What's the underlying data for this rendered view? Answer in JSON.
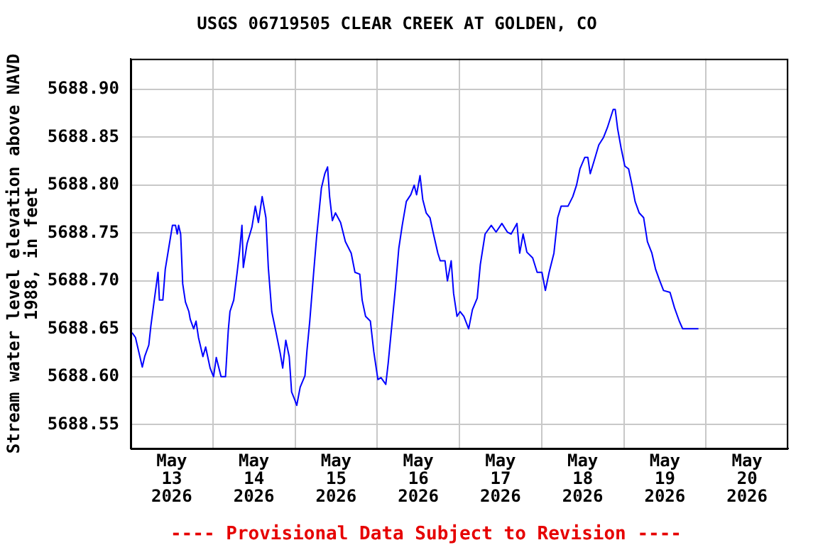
{
  "chart_data": {
    "type": "line",
    "title": "USGS 06719505 CLEAR CREEK AT GOLDEN, CO",
    "ylabel": "Stream water level elevation above NAVD\n1988, in feet",
    "annotations": [
      "---- Provisional Data Subject to Revision ----"
    ],
    "series": [
      {
        "color": "#0000ff",
        "x": [
          "2026-05-13T00:24",
          "2026-05-13T01:24",
          "2026-05-13T02:30",
          "2026-05-13T03:24",
          "2026-05-13T04:06",
          "2026-05-13T05:18",
          "2026-05-13T05:54",
          "2026-05-13T06:54",
          "2026-05-13T08:00",
          "2026-05-13T08:24",
          "2026-05-13T09:24",
          "2026-05-13T10:06",
          "2026-05-13T11:06",
          "2026-05-13T12:12",
          "2026-05-13T13:06",
          "2026-05-13T13:36",
          "2026-05-13T14:00",
          "2026-05-13T14:36",
          "2026-05-13T15:12",
          "2026-05-13T16:00",
          "2026-05-13T17:00",
          "2026-05-13T17:24",
          "2026-05-13T18:24",
          "2026-05-13T19:06",
          "2026-05-13T19:48",
          "2026-05-13T21:06",
          "2026-05-13T21:54",
          "2026-05-13T23:12",
          "2026-05-14T00:12",
          "2026-05-14T01:00",
          "2026-05-14T02:24",
          "2026-05-14T03:42",
          "2026-05-14T04:30",
          "2026-05-14T05:00",
          "2026-05-14T06:06",
          "2026-05-14T07:06",
          "2026-05-14T07:48",
          "2026-05-14T08:30",
          "2026-05-14T08:54",
          "2026-05-14T10:00",
          "2026-05-14T11:24",
          "2026-05-14T12:24",
          "2026-05-14T13:18",
          "2026-05-14T14:24",
          "2026-05-14T15:30",
          "2026-05-14T16:12",
          "2026-05-14T17:12",
          "2026-05-14T18:18",
          "2026-05-14T19:42",
          "2026-05-14T20:24",
          "2026-05-14T21:18",
          "2026-05-14T22:18",
          "2026-05-14T23:00",
          "2026-05-14T23:48",
          "2026-05-15T00:30",
          "2026-05-15T01:30",
          "2026-05-15T02:54",
          "2026-05-15T03:30",
          "2026-05-15T04:18",
          "2026-05-15T05:24",
          "2026-05-15T06:18",
          "2026-05-15T07:42",
          "2026-05-15T08:42",
          "2026-05-15T09:30",
          "2026-05-15T10:06",
          "2026-05-15T10:54",
          "2026-05-15T11:48",
          "2026-05-15T13:18",
          "2026-05-15T14:42",
          "2026-05-15T16:24",
          "2026-05-15T17:30",
          "2026-05-15T18:54",
          "2026-05-15T19:36",
          "2026-05-15T20:36",
          "2026-05-15T22:00",
          "2026-05-15T23:00",
          "2026-05-16T00:12",
          "2026-05-16T01:06",
          "2026-05-16T02:30",
          "2026-05-16T03:12",
          "2026-05-16T04:18",
          "2026-05-16T05:18",
          "2026-05-16T06:18",
          "2026-05-16T07:18",
          "2026-05-16T08:30",
          "2026-05-16T09:48",
          "2026-05-16T10:48",
          "2026-05-16T11:30",
          "2026-05-16T12:30",
          "2026-05-16T13:18",
          "2026-05-16T14:18",
          "2026-05-16T15:24",
          "2026-05-16T16:18",
          "2026-05-16T17:42",
          "2026-05-16T18:24",
          "2026-05-16T19:48",
          "2026-05-16T20:30",
          "2026-05-16T21:36",
          "2026-05-16T22:18",
          "2026-05-16T23:18",
          "2026-05-17T00:12",
          "2026-05-17T01:18",
          "2026-05-17T02:42",
          "2026-05-17T03:48",
          "2026-05-17T05:12",
          "2026-05-17T06:06",
          "2026-05-17T07:30",
          "2026-05-17T09:18",
          "2026-05-17T10:42",
          "2026-05-17T12:24",
          "2026-05-17T14:00",
          "2026-05-17T15:06",
          "2026-05-17T16:48",
          "2026-05-17T17:36",
          "2026-05-17T18:36",
          "2026-05-17T19:42",
          "2026-05-17T21:24",
          "2026-05-17T22:42",
          "2026-05-18T00:06",
          "2026-05-18T01:06",
          "2026-05-18T02:12",
          "2026-05-18T03:36",
          "2026-05-18T04:42",
          "2026-05-18T05:42",
          "2026-05-18T07:42",
          "2026-05-18T09:06",
          "2026-05-18T10:12",
          "2026-05-18T11:12",
          "2026-05-18T12:36",
          "2026-05-18T13:30",
          "2026-05-18T14:12",
          "2026-05-18T15:18",
          "2026-05-18T16:42",
          "2026-05-18T18:06",
          "2026-05-18T19:12",
          "2026-05-18T20:54",
          "2026-05-18T21:30",
          "2026-05-18T22:12",
          "2026-05-18T23:12",
          "2026-05-19T00:18",
          "2026-05-19T01:24",
          "2026-05-19T02:24",
          "2026-05-19T03:18",
          "2026-05-19T04:30",
          "2026-05-19T05:48",
          "2026-05-19T06:54",
          "2026-05-19T08:12",
          "2026-05-19T09:18",
          "2026-05-19T10:18",
          "2026-05-19T11:36",
          "2026-05-19T13:30",
          "2026-05-19T14:48",
          "2026-05-19T16:12",
          "2026-05-19T17:12",
          "2026-05-19T21:48"
        ],
        "values": [
          5688.646,
          5688.641,
          5688.624,
          5688.61,
          5688.621,
          5688.633,
          5688.653,
          5688.68,
          5688.709,
          5688.68,
          5688.68,
          5688.712,
          5688.734,
          5688.758,
          5688.758,
          5688.749,
          5688.758,
          5688.749,
          5688.697,
          5688.678,
          5688.668,
          5688.66,
          5688.65,
          5688.658,
          5688.641,
          5688.621,
          5688.631,
          5688.609,
          5688.6,
          5688.62,
          5688.6,
          5688.6,
          5688.648,
          5688.668,
          5688.68,
          5688.709,
          5688.731,
          5688.758,
          5688.714,
          5688.739,
          5688.756,
          5688.778,
          5688.761,
          5688.788,
          5688.766,
          5688.714,
          5688.668,
          5688.649,
          5688.624,
          5688.609,
          5688.638,
          5688.621,
          5688.584,
          5688.577,
          5688.57,
          5688.589,
          5688.601,
          5688.628,
          5688.658,
          5688.707,
          5688.746,
          5688.797,
          5688.812,
          5688.819,
          5688.788,
          5688.763,
          5688.771,
          5688.761,
          5688.741,
          5688.729,
          5688.709,
          5688.707,
          5688.68,
          5688.663,
          5688.658,
          5688.626,
          5688.597,
          5688.599,
          5688.592,
          5688.614,
          5688.655,
          5688.692,
          5688.734,
          5688.758,
          5688.783,
          5688.79,
          5688.8,
          5688.79,
          5688.81,
          5688.785,
          5688.771,
          5688.766,
          5688.751,
          5688.729,
          5688.721,
          5688.721,
          5688.7,
          5688.721,
          5688.687,
          5688.663,
          5688.668,
          5688.663,
          5688.65,
          5688.67,
          5688.682,
          5688.717,
          5688.749,
          5688.758,
          5688.751,
          5688.76,
          5688.751,
          5688.749,
          5688.76,
          5688.729,
          5688.749,
          5688.73,
          5688.724,
          5688.709,
          5688.709,
          5688.69,
          5688.709,
          5688.729,
          5688.766,
          5688.778,
          5688.778,
          5688.788,
          5688.8,
          5688.817,
          5688.829,
          5688.829,
          5688.812,
          5688.825,
          5688.842,
          5688.85,
          5688.86,
          5688.879,
          5688.879,
          5688.859,
          5688.839,
          5688.82,
          5688.817,
          5688.8,
          5688.783,
          5688.771,
          5688.766,
          5688.741,
          5688.729,
          5688.712,
          5688.702,
          5688.69,
          5688.688,
          5688.672,
          5688.658,
          5688.65,
          5688.65
        ]
      }
    ],
    "xlim": [
      "2026-05-13",
      "2026-05-21"
    ],
    "xticks": [
      {
        "value": "2026-05-13",
        "label": null
      },
      {
        "value": "2026-05-13T12:00",
        "label": "May\n13\n2026"
      },
      {
        "value": "2026-05-14",
        "label": null
      },
      {
        "value": "2026-05-14T12:00",
        "label": "May\n14\n2026"
      },
      {
        "value": "2026-05-15",
        "label": null
      },
      {
        "value": "2026-05-15T12:00",
        "label": "May\n15\n2026"
      },
      {
        "value": "2026-05-16",
        "label": null
      },
      {
        "value": "2026-05-16T12:00",
        "label": "May\n16\n2026"
      },
      {
        "value": "2026-05-17",
        "label": null
      },
      {
        "value": "2026-05-17T12:00",
        "label": "May\n17\n2026"
      },
      {
        "value": "2026-05-18",
        "label": null
      },
      {
        "value": "2026-05-18T12:00",
        "label": "May\n18\n2026"
      },
      {
        "value": "2026-05-19",
        "label": null
      },
      {
        "value": "2026-05-19T12:00",
        "label": "May\n19\n2026"
      },
      {
        "value": "2026-05-20",
        "label": null
      },
      {
        "value": "2026-05-20T12:00",
        "label": "May\n20\n2026"
      },
      {
        "value": "2026-05-21",
        "label": null
      }
    ],
    "ylim": [
      5688.525,
      5688.932
    ],
    "yticks": [
      {
        "value": 5688.55,
        "label": "5688.55"
      },
      {
        "value": 5688.6,
        "label": "5688.60"
      },
      {
        "value": 5688.65,
        "label": "5688.65"
      },
      {
        "value": 5688.7,
        "label": "5688.70"
      },
      {
        "value": 5688.75,
        "label": "5688.75"
      },
      {
        "value": 5688.8,
        "label": "5688.80"
      },
      {
        "value": 5688.85,
        "label": "5688.85"
      },
      {
        "value": 5688.9,
        "label": "5688.90"
      }
    ],
    "grid": true,
    "marker": "none",
    "line_style": "solid",
    "legend": false
  }
}
